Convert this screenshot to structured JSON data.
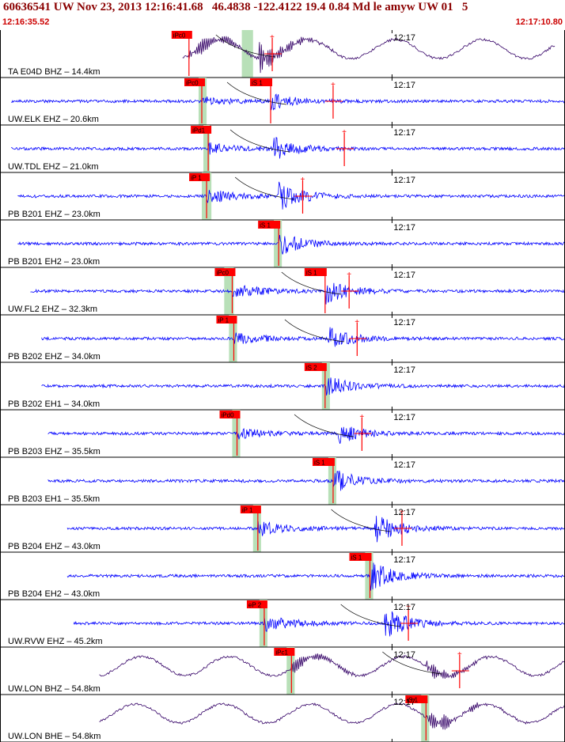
{
  "header": {
    "title": "60636541 UW Nov 23, 2013 12:16:41.68   46.4838 -122.4122 19.4 0.84 Md le amyw UW 01   5",
    "start_time": "12:16:35.52",
    "end_time": "12:17:10.80"
  },
  "colors": {
    "trace_sp": "#0000ff",
    "trace_bb": "#330066",
    "pick": "#ff0000",
    "pick_window": "#b8e0b8",
    "frame": "#000000",
    "header_text": "#8b0000",
    "time_text": "#cc0000"
  },
  "chart_data": {
    "type": "line",
    "title": "",
    "xlabel": "",
    "ylabel": "",
    "xlim": [
      "12:16:35.52",
      "12:17:10.80"
    ],
    "grid": false,
    "minute_label": "12:17",
    "series": [
      {
        "label": "TA E04D BHZ",
        "distance": "14.4km",
        "kind": "bb",
        "t_start": 11.4,
        "t_end": 34.7,
        "p_time": 11.8,
        "p_label": "iPc0",
        "s_time": 16.2,
        "s_label": "",
        "win_start": 15.1,
        "win_end": 15.8,
        "amp_time": 17.0,
        "peak": 22
      },
      {
        "label": "UW.ELK EHZ",
        "distance": "20.6km",
        "kind": "sp",
        "t_start": 0.7,
        "t_end": 36.2,
        "p_time": 12.6,
        "p_label": "iPc0",
        "s_time": 16.9,
        "s_label": "iS 1",
        "win_start": 12.4,
        "win_end": 12.9,
        "amp_time": 20.8,
        "peak": 10
      },
      {
        "label": "UW.TDL EHZ",
        "distance": "21.0km",
        "kind": "sp",
        "t_start": 0.7,
        "t_end": 36.2,
        "p_time": 13.0,
        "p_label": "iPd1",
        "s_time": 17.1,
        "s_label": "",
        "win_start": 12.7,
        "win_end": 13.1,
        "amp_time": 21.5,
        "peak": 14
      },
      {
        "label": "PB B201 EHZ",
        "distance": "23.0km",
        "kind": "sp",
        "t_start": 1.1,
        "t_end": 36.6,
        "p_time": 12.9,
        "p_label": "iP 1",
        "s_time": 17.4,
        "s_label": "",
        "win_start": 12.6,
        "win_end": 13.2,
        "amp_time": 18.9,
        "peak": 17
      },
      {
        "label": "PB B201 EH2",
        "distance": "23.0km",
        "kind": "sp",
        "t_start": 1.1,
        "t_end": 36.6,
        "p_time": 0,
        "p_label": "",
        "s_time": 17.4,
        "s_label": "iS 1",
        "win_start": 17.1,
        "win_end": 17.6,
        "amp_time": 0,
        "peak": 15
      },
      {
        "label": "UW.FL2 EHZ",
        "distance": "32.3km",
        "kind": "sp",
        "t_start": 1.9,
        "t_end": 37.7,
        "p_time": 14.5,
        "p_label": "iPc0",
        "s_time": 20.3,
        "s_label": "iS 1",
        "win_start": 14.0,
        "win_end": 14.6,
        "amp_time": 21.8,
        "peak": 16
      },
      {
        "label": "PB B202 EHZ",
        "distance": "34.0km",
        "kind": "sp",
        "t_start": 2.6,
        "t_end": 38.1,
        "p_time": 14.6,
        "p_label": "iP 1",
        "s_time": 20.5,
        "s_label": "",
        "win_start": 14.3,
        "win_end": 14.8,
        "amp_time": 22.3,
        "peak": 14
      },
      {
        "label": "PB B202 EH1",
        "distance": "34.0km",
        "kind": "sp",
        "t_start": 2.6,
        "t_end": 38.1,
        "p_time": 0,
        "p_label": "",
        "s_time": 20.3,
        "s_label": "iS 2",
        "win_start": 20.1,
        "win_end": 20.6,
        "amp_time": 0,
        "peak": 15
      },
      {
        "label": "PB B203 EHZ",
        "distance": "35.5km",
        "kind": "sp",
        "t_start": 3.0,
        "t_end": 38.5,
        "p_time": 14.8,
        "p_label": "iPd0",
        "s_time": 21.1,
        "s_label": "",
        "win_start": 14.5,
        "win_end": 15.0,
        "amp_time": 22.6,
        "peak": 13
      },
      {
        "label": "PB B203 EH1",
        "distance": "35.5km",
        "kind": "sp",
        "t_start": 3.0,
        "t_end": 38.5,
        "p_time": 0,
        "p_label": "",
        "s_time": 20.8,
        "s_label": "iS 1",
        "win_start": 20.5,
        "win_end": 21.0,
        "amp_time": 0,
        "peak": 15
      },
      {
        "label": "PB B204 EHZ",
        "distance": "43.0km",
        "kind": "sp",
        "t_start": 4.2,
        "t_end": 39.8,
        "p_time": 16.1,
        "p_label": "iP 1",
        "s_time": 23.4,
        "s_label": "",
        "win_start": 15.8,
        "win_end": 16.3,
        "amp_time": 25.1,
        "peak": 19
      },
      {
        "label": "PB B204 EH2",
        "distance": "43.0km",
        "kind": "sp",
        "t_start": 4.2,
        "t_end": 39.8,
        "p_time": 0,
        "p_label": "",
        "s_time": 23.1,
        "s_label": "iS 1",
        "win_start": 22.8,
        "win_end": 23.3,
        "amp_time": 0,
        "peak": 19
      },
      {
        "label": "UW.RVW EHZ",
        "distance": "45.2km",
        "kind": "sp",
        "t_start": 4.6,
        "t_end": 40.2,
        "p_time": 16.5,
        "p_label": "eP 2",
        "s_time": 24.0,
        "s_label": "",
        "win_start": 16.2,
        "win_end": 16.7,
        "amp_time": 25.5,
        "peak": 20
      },
      {
        "label": "UW.LON BHZ",
        "distance": "54.8km",
        "kind": "bb",
        "t_start": 6.2,
        "t_end": 41.7,
        "p_time": 18.2,
        "p_label": "iPc1",
        "s_time": 26.6,
        "s_label": "",
        "win_start": 17.9,
        "win_end": 18.4,
        "amp_time": 28.7,
        "peak": 14
      },
      {
        "label": "UW.LON BHE",
        "distance": "54.8km",
        "kind": "bb",
        "t_start": 6.2,
        "t_end": 41.7,
        "p_time": 0,
        "p_label": "",
        "s_time": 26.6,
        "s_label": "iS 1",
        "win_start": 26.3,
        "win_end": 26.8,
        "amp_time": 0,
        "peak": 14
      }
    ]
  }
}
